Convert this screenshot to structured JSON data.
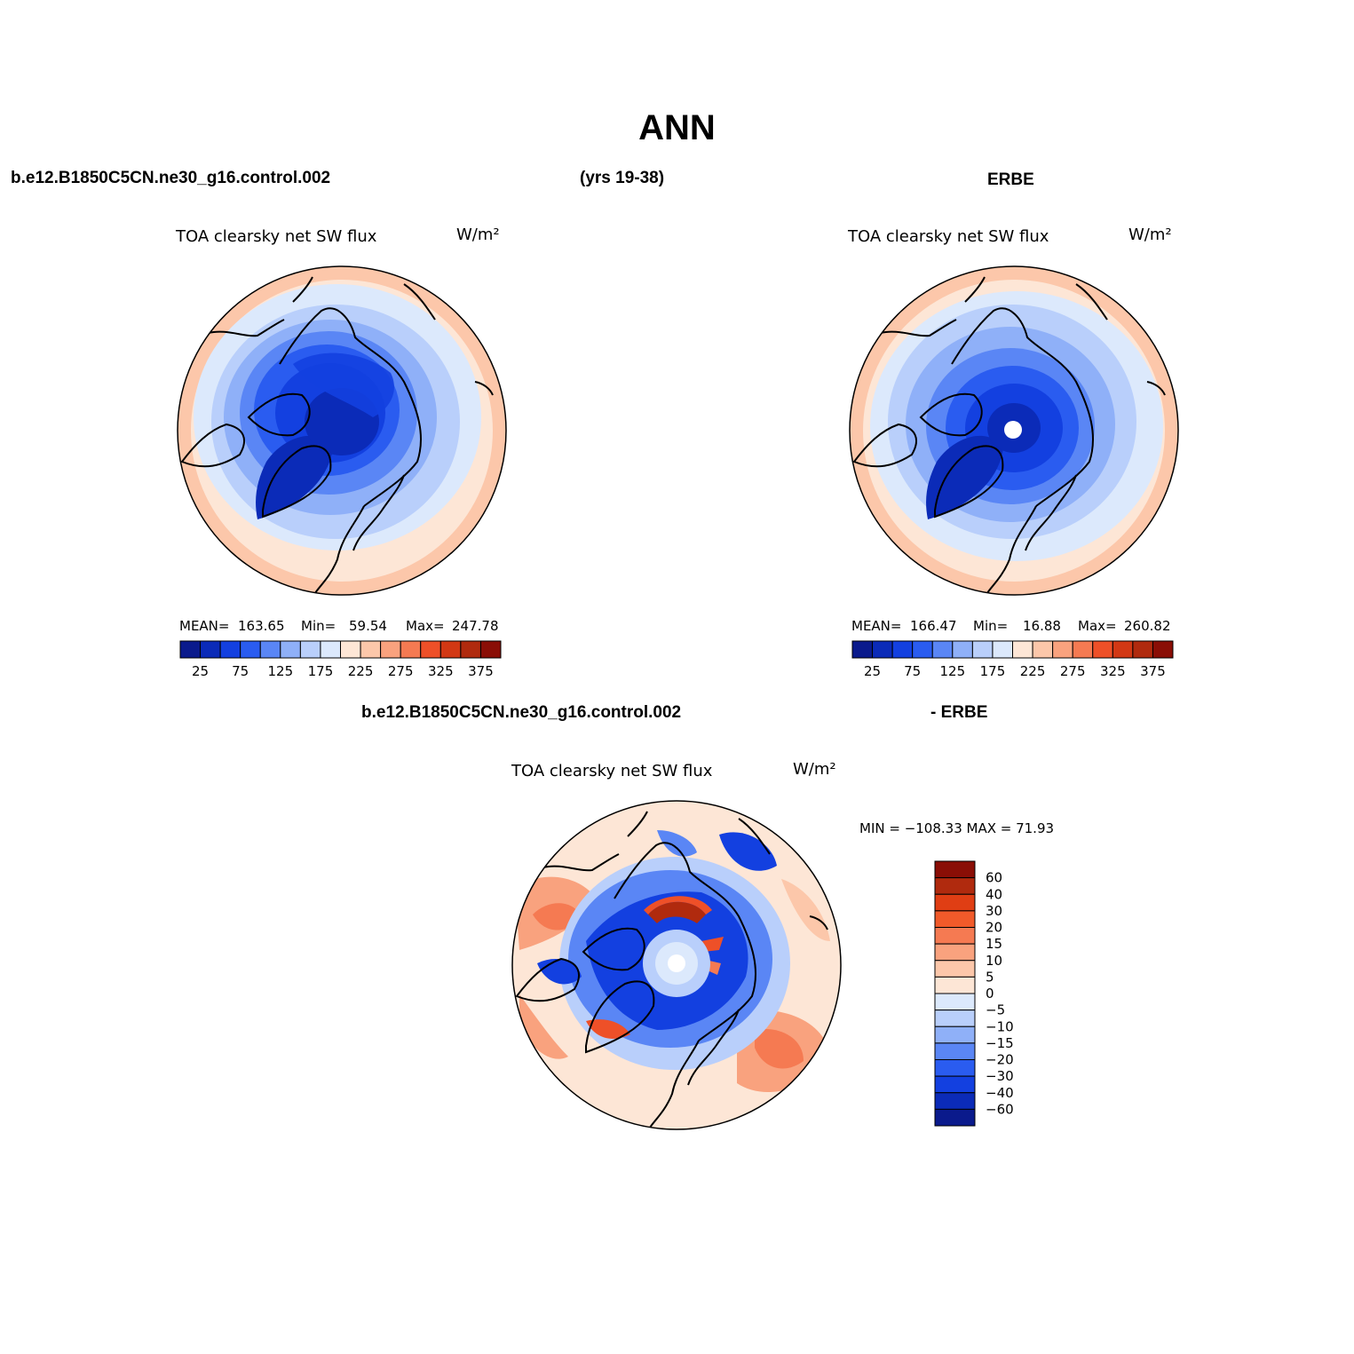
{
  "page": {
    "main_title": "ANN",
    "case_name": "b.e12.B1850C5CN.ne30_g16.control.002",
    "years": "(yrs 19-38)",
    "obs_name": "ERBE",
    "diff_suffix": "- ERBE"
  },
  "panels": [
    {
      "id": "model",
      "variable": "TOA clearsky net SW flux",
      "units": "W/m²",
      "mean_label": "MEAN=",
      "mean": "163.65",
      "min_label": "Min=",
      "min": "59.54",
      "max_label": "Max=",
      "max": "247.78"
    },
    {
      "id": "obs",
      "variable": "TOA clearsky net SW flux",
      "units": "W/m²",
      "mean_label": "MEAN=",
      "mean": "166.47",
      "min_label": "Min=",
      "min": "16.88",
      "max_label": "Max=",
      "max": "260.82"
    }
  ],
  "diff_panel": {
    "variable": "TOA clearsky net SW flux",
    "units": "W/m²",
    "minmax": "MIN = −108.33 MAX =  71.93"
  },
  "colorbar_main": {
    "colors": [
      "#0a1a8c",
      "#0b2bb8",
      "#1340e0",
      "#2a5cf0",
      "#5a86f5",
      "#8fb0f8",
      "#b9cffb",
      "#dce9fc",
      "#fde6d6",
      "#fcc7aa",
      "#f9a27e",
      "#f57a52",
      "#ee5028",
      "#d23814",
      "#b02a0e",
      "#8a0e06"
    ],
    "tick_labels": [
      "25",
      "75",
      "125",
      "175",
      "225",
      "275",
      "325",
      "375"
    ]
  },
  "colorbar_diff": {
    "colors_top_to_bottom": [
      "#8a0e06",
      "#b02a0e",
      "#e03e14",
      "#f15a2a",
      "#f57a52",
      "#f9a27e",
      "#fcc7aa",
      "#fde6d6",
      "#dce9fc",
      "#b9cffb",
      "#8fb0f8",
      "#5a86f5",
      "#2a5cf0",
      "#1340e0",
      "#0b2bb8",
      "#0a1a8c"
    ],
    "tick_labels": [
      "60",
      "40",
      "30",
      "20",
      "15",
      "10",
      "5",
      "0",
      "−5",
      "−10",
      "−15",
      "−20",
      "−30",
      "−40",
      "−60"
    ]
  }
}
